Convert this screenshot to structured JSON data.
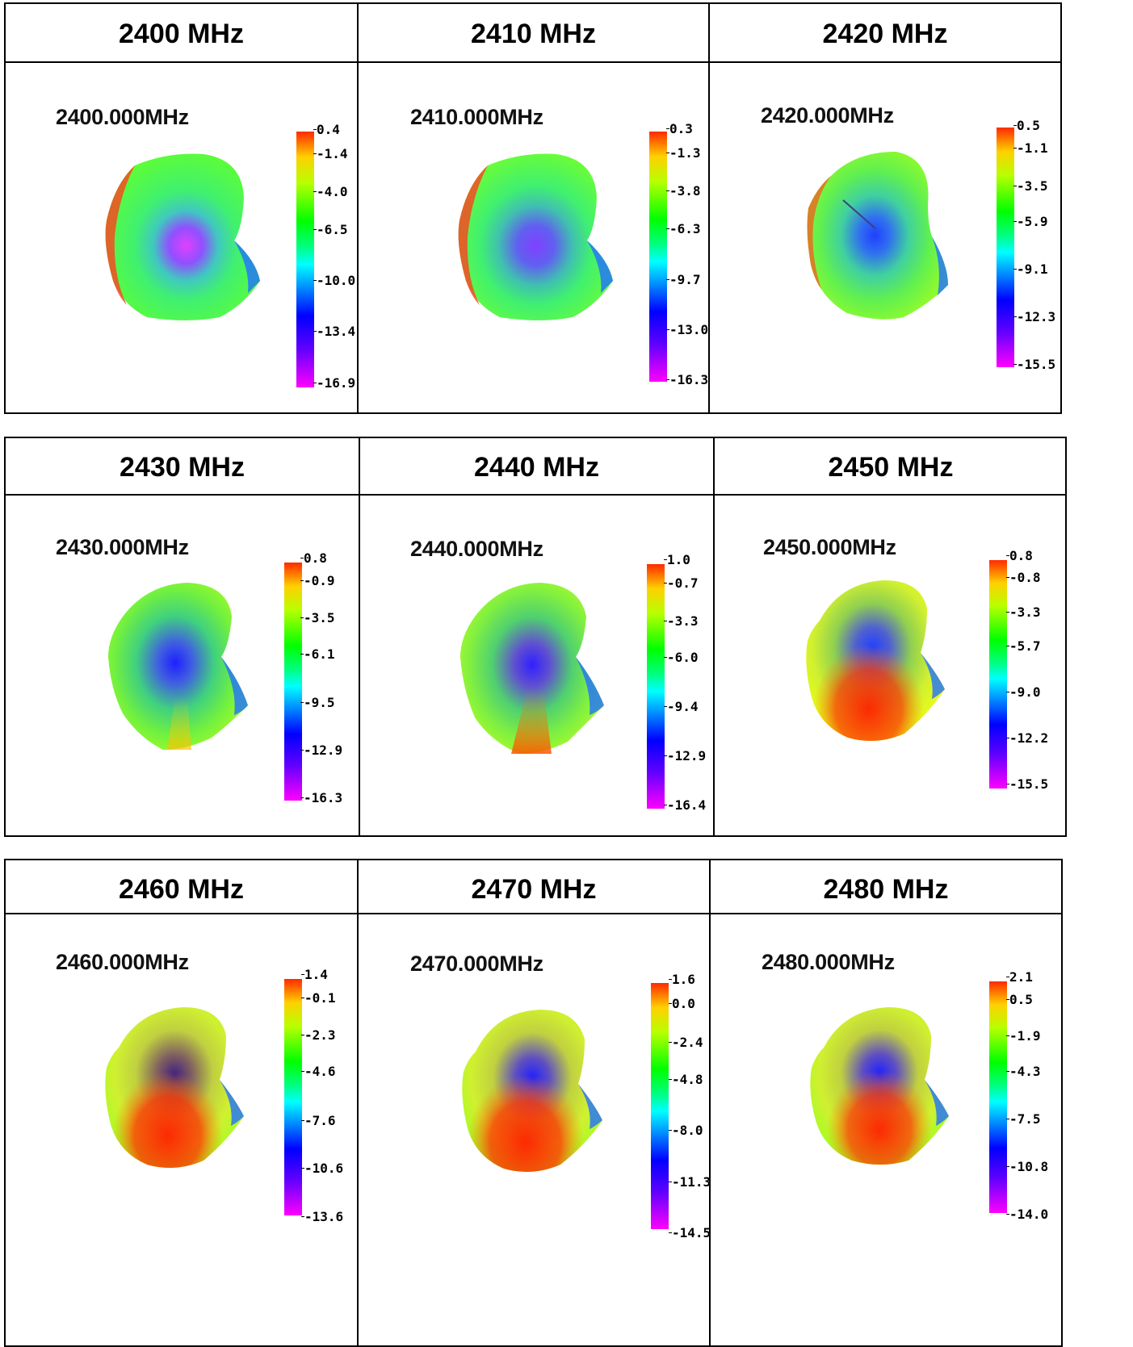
{
  "table1": {
    "headers": [
      "2400 MHz",
      "2410 MHz",
      "2420 MHz"
    ],
    "cells": [
      {
        "label": "2400.000MHz",
        "ticks": [
          "0.4",
          "-1.4",
          "-4.0",
          "-6.5",
          "-10.0",
          "-13.4",
          "-16.9"
        ]
      },
      {
        "label": "2410.000MHz",
        "ticks": [
          "0.3",
          "-1.3",
          "-3.8",
          "-6.3",
          "-9.7",
          "-13.0",
          "-16.3"
        ]
      },
      {
        "label": "2420.000MHz",
        "ticks": [
          "0.5",
          "-1.1",
          "-3.5",
          "-5.9",
          "-9.1",
          "-12.3",
          "-15.5"
        ]
      }
    ]
  },
  "table2": {
    "headers": [
      "2430 MHz",
      "2440 MHz",
      "2450 MHz"
    ],
    "cells": [
      {
        "label": "2430.000MHz",
        "ticks": [
          "0.8",
          "-0.9",
          "-3.5",
          "-6.1",
          "-9.5",
          "-12.9",
          "-16.3"
        ]
      },
      {
        "label": "2440.000MHz",
        "ticks": [
          "1.0",
          "-0.7",
          "-3.3",
          "-6.0",
          "-9.4",
          "-12.9",
          "-16.4"
        ]
      },
      {
        "label": "2450.000MHz",
        "ticks": [
          "0.8",
          "-0.8",
          "-3.3",
          "-5.7",
          "-9.0",
          "-12.2",
          "-15.5"
        ]
      }
    ]
  },
  "table3": {
    "headers": [
      "2460 MHz",
      "2470 MHz",
      "2480 MHz"
    ],
    "cells": [
      {
        "label": "2460.000MHz",
        "ticks": [
          "1.4",
          "-0.1",
          "-2.3",
          "-4.6",
          "-7.6",
          "-10.6",
          "-13.6"
        ]
      },
      {
        "label": "2470.000MHz",
        "ticks": [
          "1.6",
          "0.0",
          "-2.4",
          "-4.8",
          "-8.0",
          "-11.3",
          "-14.5"
        ]
      },
      {
        "label": "2480.000MHz",
        "ticks": [
          "2.1",
          "0.5",
          "-1.9",
          "-4.3",
          "-7.5",
          "-10.8",
          "-14.0"
        ]
      }
    ]
  },
  "colors": {
    "hot": "#ff2a00",
    "warm": "#ffd000",
    "green": "#33ff00",
    "cyan": "#00ffff",
    "blue": "#0000ff",
    "magenta": "#ff00ff"
  }
}
